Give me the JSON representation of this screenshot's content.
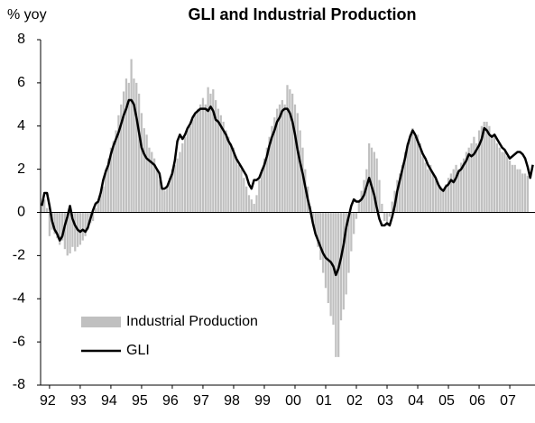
{
  "chart_data": {
    "type": "bar_line",
    "title": "GLI and Industrial Production",
    "y_label": "% yoy",
    "categories": [
      null,
      null,
      null,
      "92",
      null,
      null,
      null,
      null,
      null,
      null,
      null,
      null,
      null,
      null,
      null,
      "93",
      null,
      null,
      null,
      null,
      null,
      null,
      null,
      null,
      null,
      null,
      null,
      "94",
      null,
      null,
      null,
      null,
      null,
      null,
      null,
      null,
      null,
      null,
      null,
      "95",
      null,
      null,
      null,
      null,
      null,
      null,
      null,
      null,
      null,
      null,
      null,
      "96",
      null,
      null,
      null,
      null,
      null,
      null,
      null,
      null,
      null,
      null,
      null,
      "97",
      null,
      null,
      null,
      null,
      null,
      null,
      null,
      null,
      null,
      null,
      null,
      "98",
      null,
      null,
      null,
      null,
      null,
      null,
      null,
      null,
      null,
      null,
      null,
      "99",
      null,
      null,
      null,
      null,
      null,
      null,
      null,
      null,
      null,
      null,
      null,
      "00",
      null,
      null,
      null,
      null,
      null,
      null,
      null,
      null,
      null,
      null,
      null,
      "01",
      null,
      null,
      null,
      null,
      null,
      null,
      null,
      null,
      null,
      null,
      null,
      "02",
      null,
      null,
      null,
      null,
      null,
      null,
      null,
      null,
      null,
      null,
      null,
      "03",
      null,
      null,
      null,
      null,
      null,
      null,
      null,
      null,
      null,
      null,
      null,
      "04",
      null,
      null,
      null,
      null,
      null,
      null,
      null,
      null,
      null,
      null,
      null,
      "05",
      null,
      null,
      null,
      null,
      null,
      null,
      null,
      null,
      null,
      null,
      null,
      "06",
      null,
      null,
      null,
      null,
      null,
      null,
      null,
      null,
      null,
      null,
      null,
      "07",
      null,
      null,
      null,
      null,
      null,
      null,
      null,
      null,
      null
    ],
    "series": [
      {
        "name": "Industrial Production",
        "kind": "bar",
        "color": "#c0c0c0",
        "values": [
          0.3,
          0.6,
          0.2,
          -1.1,
          -0.8,
          -1.0,
          -1.2,
          -1.5,
          -1.3,
          -1.7,
          -2.0,
          -1.9,
          -1.6,
          -1.8,
          -1.6,
          -1.5,
          -1.3,
          -1.1,
          -0.8,
          -0.5,
          -0.4,
          0.2,
          0.5,
          0.8,
          1.2,
          2.0,
          2.5,
          3.0,
          3.3,
          3.8,
          4.5,
          5.0,
          5.6,
          6.2,
          6.0,
          7.1,
          6.2,
          6.0,
          5.5,
          4.6,
          3.9,
          3.6,
          3.0,
          2.8,
          2.5,
          2.0,
          1.5,
          1.1,
          1.0,
          1.2,
          1.6,
          2.0,
          2.2,
          2.5,
          2.8,
          3.2,
          3.5,
          3.8,
          4.0,
          4.3,
          4.6,
          4.8,
          5.0,
          5.3,
          5.0,
          5.8,
          5.5,
          5.7,
          5.2,
          4.8,
          4.5,
          4.2,
          3.8,
          3.5,
          3.2,
          3.0,
          2.6,
          2.2,
          2.0,
          1.6,
          1.2,
          0.8,
          0.6,
          0.4,
          0.8,
          1.5,
          2.0,
          2.5,
          3.0,
          3.5,
          4.0,
          4.4,
          4.8,
          5.0,
          5.2,
          5.0,
          5.9,
          5.7,
          5.5,
          5.0,
          4.6,
          3.8,
          3.0,
          2.0,
          1.2,
          0.3,
          -0.5,
          -1.0,
          -1.6,
          -2.2,
          -2.8,
          -3.5,
          -4.2,
          -4.8,
          -5.2,
          -6.7,
          -6.7,
          -5.0,
          -4.5,
          -3.8,
          -2.8,
          -1.8,
          -1.0,
          -0.3,
          0.5,
          1.0,
          1.5,
          2.0,
          3.2,
          3.0,
          2.8,
          2.5,
          1.5,
          0.4,
          -0.4,
          -0.5,
          -0.2,
          0.5,
          1.0,
          1.5,
          1.8,
          2.2,
          2.8,
          3.2,
          3.6,
          3.9,
          3.5,
          3.6,
          3.2,
          2.6,
          2.3,
          2.0,
          2.2,
          1.8,
          1.6,
          1.4,
          1.2,
          1.0,
          1.3,
          1.6,
          1.8,
          2.0,
          2.2,
          2.0,
          2.3,
          2.5,
          2.8,
          3.0,
          3.2,
          3.5,
          3.2,
          3.8,
          4.0,
          4.2,
          4.2,
          4.0,
          3.6,
          3.5,
          3.2,
          3.0,
          2.8,
          2.8,
          2.6,
          2.4,
          2.2,
          2.2,
          2.0,
          2.0,
          1.8,
          1.8,
          1.7,
          null,
          null
        ]
      },
      {
        "name": "GLI",
        "kind": "line",
        "color": "#000000",
        "values": [
          0.3,
          0.9,
          0.9,
          0.3,
          -0.4,
          -0.8,
          -1.0,
          -1.3,
          -1.1,
          -0.6,
          -0.2,
          0.3,
          -0.3,
          -0.6,
          -0.8,
          -0.9,
          -0.8,
          -0.9,
          -0.7,
          -0.3,
          0.1,
          0.4,
          0.5,
          0.9,
          1.5,
          1.9,
          2.2,
          2.7,
          3.1,
          3.4,
          3.7,
          4.1,
          4.5,
          4.8,
          5.2,
          5.2,
          5.0,
          4.4,
          3.7,
          3.0,
          2.7,
          2.5,
          2.4,
          2.3,
          2.2,
          2.0,
          1.8,
          1.1,
          1.1,
          1.2,
          1.5,
          1.8,
          2.4,
          3.3,
          3.6,
          3.4,
          3.6,
          3.9,
          4.1,
          4.4,
          4.6,
          4.7,
          4.8,
          4.8,
          4.8,
          4.7,
          4.9,
          4.7,
          4.3,
          4.2,
          4.0,
          3.8,
          3.6,
          3.3,
          3.1,
          2.8,
          2.5,
          2.3,
          2.1,
          1.9,
          1.7,
          1.3,
          1.1,
          1.5,
          1.5,
          1.6,
          1.9,
          2.2,
          2.6,
          3.1,
          3.5,
          3.8,
          4.2,
          4.4,
          4.7,
          4.8,
          4.8,
          4.6,
          4.2,
          3.6,
          2.9,
          2.3,
          1.8,
          1.2,
          0.6,
          0.1,
          -0.5,
          -1.0,
          -1.3,
          -1.6,
          -1.9,
          -2.1,
          -2.2,
          -2.3,
          -2.5,
          -2.9,
          -2.6,
          -2.1,
          -1.5,
          -0.7,
          -0.2,
          0.3,
          0.6,
          0.5,
          0.5,
          0.6,
          0.8,
          1.2,
          1.6,
          1.2,
          0.8,
          0.2,
          -0.3,
          -0.6,
          -0.6,
          -0.5,
          -0.6,
          -0.2,
          0.3,
          1.0,
          1.5,
          2.0,
          2.5,
          3.1,
          3.5,
          3.8,
          3.6,
          3.3,
          3.0,
          2.7,
          2.5,
          2.2,
          2.0,
          1.8,
          1.6,
          1.3,
          1.1,
          1.0,
          1.2,
          1.3,
          1.5,
          1.4,
          1.6,
          1.9,
          2.0,
          2.2,
          2.4,
          2.7,
          2.6,
          2.7,
          2.9,
          3.1,
          3.4,
          3.9,
          3.8,
          3.6,
          3.5,
          3.6,
          3.4,
          3.2,
          3.0,
          2.9,
          2.7,
          2.5,
          2.6,
          2.7,
          2.8,
          2.8,
          2.7,
          2.5,
          2.1,
          1.6,
          2.2
        ]
      }
    ],
    "ylim": [
      -8,
      8
    ],
    "yticks": [
      -8,
      -6,
      -4,
      -2,
      0,
      2,
      4,
      6,
      8
    ],
    "legend": "lower left"
  }
}
